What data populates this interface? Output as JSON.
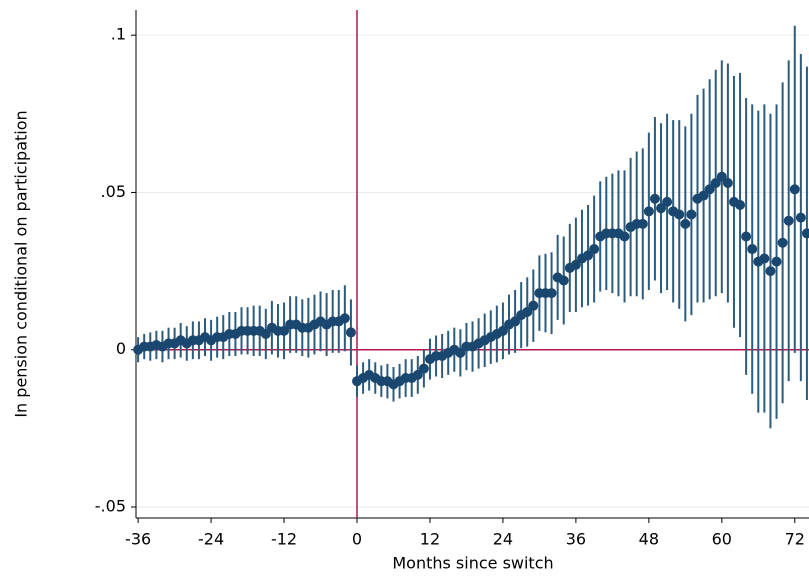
{
  "chart_data": {
    "type": "scatter",
    "x_label": "Months since switch",
    "y_label": "In pension conditional on participation",
    "x": [
      -36,
      -35,
      -34,
      -33,
      -32,
      -31,
      -30,
      -29,
      -28,
      -27,
      -26,
      -25,
      -24,
      -23,
      -22,
      -21,
      -20,
      -19,
      -18,
      -17,
      -16,
      -15,
      -14,
      -13,
      -12,
      -11,
      -10,
      -9,
      -8,
      -7,
      -6,
      -5,
      -4,
      -3,
      -2,
      -1,
      0,
      1,
      2,
      3,
      4,
      5,
      6,
      7,
      8,
      9,
      10,
      11,
      12,
      13,
      14,
      15,
      16,
      17,
      18,
      19,
      20,
      21,
      22,
      23,
      24,
      25,
      26,
      27,
      28,
      29,
      30,
      31,
      32,
      33,
      34,
      35,
      36,
      37,
      38,
      39,
      40,
      41,
      42,
      43,
      44,
      45,
      46,
      47,
      48,
      49,
      50,
      51,
      52,
      53,
      54,
      55,
      56,
      57,
      58,
      59,
      60,
      61,
      62,
      63,
      64,
      65,
      66,
      67,
      68,
      69,
      70,
      71,
      72,
      73,
      74
    ],
    "series": [
      {
        "color": "#1a476f",
        "error_color": "#2d5b7c",
        "values": [
          0,
          0.001,
          0.001,
          0.0015,
          0.001,
          0.002,
          0.002,
          0.003,
          0.002,
          0.003,
          0.003,
          0.004,
          0.003,
          0.004,
          0.004,
          0.005,
          0.005,
          0.006,
          0.006,
          0.006,
          0.006,
          0.005,
          0.007,
          0.006,
          0.006,
          0.008,
          0.008,
          0.007,
          0.007,
          0.008,
          0.009,
          0.008,
          0.009,
          0.009,
          0.01,
          0.0055,
          -0.01,
          -0.009,
          -0.008,
          -0.009,
          -0.01,
          -0.01,
          -0.011,
          -0.01,
          -0.009,
          -0.009,
          -0.008,
          -0.006,
          -0.003,
          -0.002,
          -0.002,
          -0.001,
          0,
          -0.001,
          0.001,
          0.001,
          0.002,
          0.003,
          0.004,
          0.005,
          0.006,
          0.008,
          0.009,
          0.011,
          0.012,
          0.014,
          0.018,
          0.018,
          0.018,
          0.023,
          0.022,
          0.026,
          0.027,
          0.029,
          0.03,
          0.032,
          0.036,
          0.037,
          0.037,
          0.037,
          0.036,
          0.039,
          0.04,
          0.04,
          0.044,
          0.048,
          0.045,
          0.047,
          0.044,
          0.043,
          0.04,
          0.043,
          0.048,
          0.049,
          0.051,
          0.053,
          0.055,
          0.053,
          0.047,
          0.046,
          0.036,
          0.032,
          0.028,
          0.029,
          0.025,
          0.028,
          0.034,
          0.041,
          0.051,
          0.042,
          0.037
        ],
        "errors": [
          0.004,
          0.004,
          0.0045,
          0.0045,
          0.005,
          0.005,
          0.005,
          0.0055,
          0.0055,
          0.006,
          0.006,
          0.006,
          0.0065,
          0.0065,
          0.007,
          0.007,
          0.007,
          0.0075,
          0.0075,
          0.008,
          0.008,
          0.008,
          0.0085,
          0.0085,
          0.009,
          0.009,
          0.009,
          0.009,
          0.0095,
          0.0095,
          0.0095,
          0.01,
          0.01,
          0.01,
          0.0105,
          0.0105,
          0.005,
          0.005,
          0.005,
          0.005,
          0.005,
          0.0055,
          0.0055,
          0.0055,
          0.006,
          0.006,
          0.006,
          0.006,
          0.0065,
          0.0065,
          0.007,
          0.007,
          0.007,
          0.0075,
          0.0075,
          0.008,
          0.008,
          0.0085,
          0.0085,
          0.009,
          0.009,
          0.0095,
          0.01,
          0.0105,
          0.011,
          0.0115,
          0.012,
          0.0125,
          0.013,
          0.0135,
          0.014,
          0.014,
          0.015,
          0.0155,
          0.016,
          0.017,
          0.0175,
          0.018,
          0.019,
          0.02,
          0.021,
          0.022,
          0.023,
          0.024,
          0.025,
          0.026,
          0.027,
          0.028,
          0.029,
          0.03,
          0.031,
          0.032,
          0.033,
          0.034,
          0.035,
          0.036,
          0.037,
          0.038,
          0.04,
          0.042,
          0.044,
          0.046,
          0.048,
          0.049,
          0.05,
          0.05,
          0.051,
          0.051,
          0.052,
          0.052,
          0.053
        ]
      }
    ],
    "xlim": [
      -36.35,
      74.34
    ],
    "ylim": [
      -0.0535,
      0.108
    ],
    "xticks": [
      -36,
      -24,
      -12,
      0,
      12,
      24,
      36,
      48,
      60,
      72
    ],
    "yticks": [
      {
        "value": -0.05,
        "label": "-.05"
      },
      0,
      {
        "value": 0.05,
        "label": ".05"
      },
      {
        "value": 0.1,
        "label": ".1"
      }
    ],
    "grid": true,
    "vline": 0,
    "hline": 0,
    "reference_color": "#b5174f"
  }
}
